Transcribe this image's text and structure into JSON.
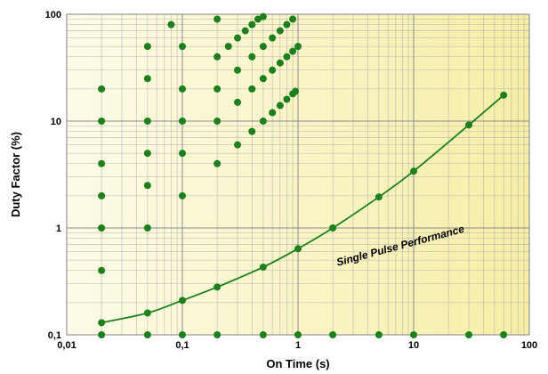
{
  "chart_data": {
    "type": "scatter",
    "xscale": "log",
    "yscale": "log",
    "xlim": [
      0.01,
      100
    ],
    "ylim": [
      0.1,
      100
    ],
    "xlabel": "On Time (s)",
    "ylabel": "Duty Factor (%)",
    "x_tick_labels": [
      "0,01",
      "0,1",
      "1",
      "10",
      "100"
    ],
    "y_tick_labels": [
      "0,1",
      "1",
      "10",
      "100"
    ],
    "grid": true,
    "colors": {
      "plot_bg_left": "#fdfbe8",
      "plot_bg_right": "#f6eea6",
      "grid": "#a8a8a8",
      "marker": "#1e7f1e",
      "line": "#1e7f1e"
    },
    "annotations": [
      {
        "text": "Single Pulse Performance",
        "x": 2.2,
        "y": 0.44
      }
    ],
    "series": [
      {
        "type": "line",
        "points": [
          [
            0.02,
            0.13
          ],
          [
            0.05,
            0.16
          ],
          [
            0.1,
            0.21
          ],
          [
            0.2,
            0.28
          ],
          [
            0.5,
            0.43
          ],
          [
            1,
            0.64
          ],
          [
            2,
            1.0
          ],
          [
            5,
            1.95
          ],
          [
            10,
            3.4
          ],
          [
            30,
            9.2
          ],
          [
            60,
            17.5
          ]
        ]
      },
      {
        "type": "scatter",
        "points": [
          [
            0.02,
            0.1
          ],
          [
            0.05,
            0.1
          ],
          [
            0.1,
            0.1
          ],
          [
            0.2,
            0.1
          ],
          [
            0.5,
            0.1
          ],
          [
            1,
            0.1
          ],
          [
            2,
            0.1
          ],
          [
            5,
            0.1
          ],
          [
            10,
            0.1
          ],
          [
            30,
            0.1
          ],
          [
            60,
            0.1
          ],
          [
            0.02,
            0.4
          ],
          [
            0.02,
            1
          ],
          [
            0.02,
            2
          ],
          [
            0.02,
            4
          ],
          [
            0.02,
            10
          ],
          [
            0.02,
            20
          ],
          [
            0.05,
            1
          ],
          [
            0.05,
            2.5
          ],
          [
            0.05,
            5
          ],
          [
            0.05,
            10
          ],
          [
            0.05,
            25
          ],
          [
            0.05,
            50
          ],
          [
            0.08,
            80
          ],
          [
            0.1,
            2
          ],
          [
            0.1,
            5
          ],
          [
            0.1,
            10
          ],
          [
            0.1,
            20
          ],
          [
            0.1,
            50
          ],
          [
            0.2,
            4
          ],
          [
            0.2,
            10
          ],
          [
            0.2,
            20
          ],
          [
            0.2,
            40
          ],
          [
            0.2,
            90
          ],
          [
            0.25,
            50
          ],
          [
            0.3,
            6
          ],
          [
            0.3,
            15
          ],
          [
            0.3,
            30
          ],
          [
            0.3,
            60
          ],
          [
            0.35,
            70
          ],
          [
            0.4,
            8
          ],
          [
            0.4,
            20
          ],
          [
            0.4,
            40
          ],
          [
            0.4,
            80
          ],
          [
            0.45,
            90
          ],
          [
            0.5,
            10
          ],
          [
            0.5,
            25
          ],
          [
            0.5,
            50
          ],
          [
            0.5,
            95
          ],
          [
            0.6,
            12
          ],
          [
            0.6,
            30
          ],
          [
            0.6,
            60
          ],
          [
            0.7,
            14
          ],
          [
            0.7,
            35
          ],
          [
            0.7,
            70
          ],
          [
            0.8,
            16
          ],
          [
            0.8,
            40
          ],
          [
            0.8,
            80
          ],
          [
            0.9,
            18
          ],
          [
            0.9,
            45
          ],
          [
            0.9,
            90
          ],
          [
            0.95,
            19
          ],
          [
            1,
            50
          ]
        ]
      }
    ]
  }
}
